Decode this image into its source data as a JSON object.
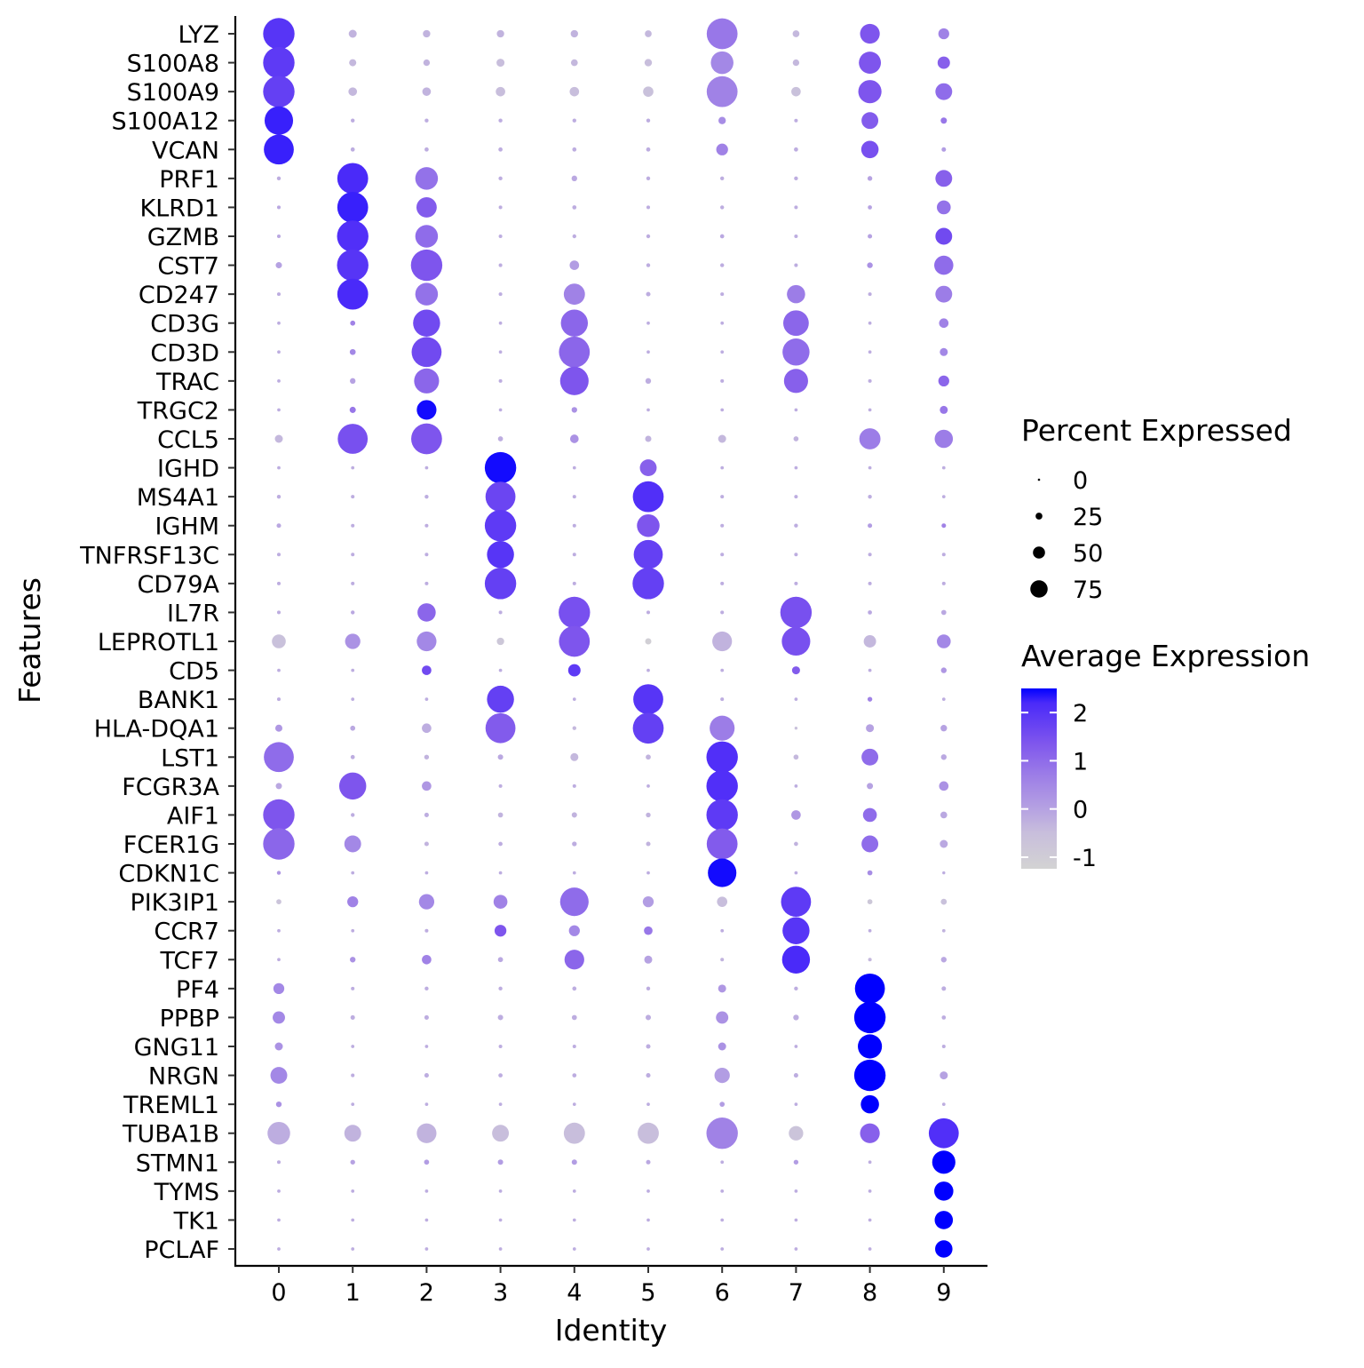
{
  "chart_data": {
    "type": "dotplot",
    "xlabel": "Identity",
    "ylabel": "Features",
    "clusters": [
      "0",
      "1",
      "2",
      "3",
      "4",
      "5",
      "6",
      "7",
      "8",
      "9"
    ],
    "genes": [
      "LYZ",
      "S100A8",
      "S100A9",
      "S100A12",
      "VCAN",
      "PRF1",
      "KLRD1",
      "GZMB",
      "CST7",
      "CD247",
      "CD3G",
      "CD3D",
      "TRAC",
      "TRGC2",
      "CCL5",
      "IGHD",
      "MS4A1",
      "IGHM",
      "TNFRSF13C",
      "CD79A",
      "IL7R",
      "LEPROTL1",
      "CD5",
      "BANK1",
      "HLA-DQA1",
      "LST1",
      "FCGR3A",
      "AIF1",
      "FCER1G",
      "CDKN1C",
      "PIK3IP1",
      "CCR7",
      "TCF7",
      "PF4",
      "PPBP",
      "GNG11",
      "NRGN",
      "TREML1",
      "TUBA1B",
      "STMN1",
      "TYMS",
      "TK1",
      "PCLAF"
    ],
    "percent_expressed": [
      [
        100,
        20,
        18,
        18,
        18,
        16,
        98,
        16,
        60,
        30
      ],
      [
        100,
        17,
        15,
        20,
        16,
        18,
        70,
        15,
        68,
        35
      ],
      [
        100,
        22,
        22,
        25,
        25,
        28,
        98,
        25,
        72,
        50
      ],
      [
        90,
        6,
        6,
        6,
        6,
        6,
        18,
        5,
        50,
        14
      ],
      [
        95,
        7,
        7,
        7,
        7,
        7,
        33,
        7,
        52,
        8
      ],
      [
        6,
        98,
        70,
        6,
        12,
        6,
        6,
        6,
        9,
        50
      ],
      [
        5,
        98,
        62,
        5,
        7,
        5,
        6,
        5,
        7,
        40
      ],
      [
        5,
        100,
        70,
        5,
        6,
        6,
        7,
        5,
        8,
        50
      ],
      [
        14,
        100,
        100,
        5,
        25,
        6,
        6,
        5,
        12,
        58
      ],
      [
        5,
        98,
        70,
        5,
        65,
        8,
        5,
        55,
        5,
        50
      ],
      [
        4,
        10,
        85,
        4,
        85,
        4,
        4,
        80,
        4,
        25
      ],
      [
        4,
        13,
        95,
        4,
        98,
        4,
        4,
        85,
        4,
        20
      ],
      [
        4,
        12,
        78,
        5,
        90,
        12,
        5,
        75,
        5,
        30
      ],
      [
        4,
        14,
        60,
        4,
        12,
        4,
        4,
        4,
        4,
        20
      ],
      [
        20,
        95,
        98,
        10,
        22,
        14,
        20,
        10,
        65,
        55
      ],
      [
        4,
        4,
        4,
        100,
        4,
        50,
        4,
        4,
        4,
        4
      ],
      [
        6,
        5,
        6,
        95,
        5,
        98,
        5,
        5,
        6,
        4
      ],
      [
        8,
        5,
        5,
        100,
        5,
        70,
        5,
        6,
        8,
        8
      ],
      [
        5,
        5,
        5,
        85,
        5,
        92,
        5,
        5,
        5,
        5
      ],
      [
        5,
        5,
        5,
        100,
        5,
        100,
        5,
        5,
        5,
        5
      ],
      [
        5,
        6,
        55,
        5,
        100,
        5,
        5,
        100,
        7,
        10
      ],
      [
        40,
        45,
        60,
        18,
        98,
        14,
        60,
        90,
        35,
        40
      ],
      [
        4,
        4,
        25,
        4,
        35,
        4,
        4,
        20,
        4,
        12
      ],
      [
        5,
        4,
        4,
        85,
        4,
        95,
        5,
        4,
        9,
        4
      ],
      [
        17,
        10,
        25,
        95,
        6,
        98,
        78,
        3,
        20,
        15
      ],
      [
        95,
        7,
        9,
        11,
        20,
        10,
        100,
        10,
        50,
        12
      ],
      [
        14,
        85,
        25,
        5,
        5,
        4,
        100,
        4,
        14,
        25
      ],
      [
        100,
        6,
        8,
        10,
        11,
        9,
        100,
        25,
        40,
        16
      ],
      [
        100,
        50,
        8,
        7,
        9,
        8,
        98,
        7,
        50,
        20
      ],
      [
        6,
        4,
        4,
        4,
        4,
        4,
        90,
        4,
        10,
        3
      ],
      [
        10,
        30,
        45,
        40,
        90,
        30,
        28,
        95,
        10,
        13
      ],
      [
        4,
        4,
        5,
        33,
        30,
        22,
        4,
        85,
        4,
        4
      ],
      [
        4,
        12,
        25,
        10,
        60,
        20,
        5,
        88,
        5,
        12
      ],
      [
        30,
        5,
        6,
        6,
        7,
        6,
        20,
        6,
        95,
        8
      ],
      [
        35,
        8,
        8,
        11,
        10,
        11,
        35,
        12,
        100,
        7
      ],
      [
        20,
        4,
        4,
        5,
        5,
        8,
        20,
        4,
        75,
        5
      ],
      [
        50,
        5,
        8,
        7,
        7,
        8,
        45,
        8,
        100,
        20
      ],
      [
        12,
        4,
        4,
        4,
        4,
        4,
        10,
        4,
        55,
        4
      ],
      [
        70,
        50,
        60,
        50,
        65,
        65,
        100,
        42,
        60,
        95
      ],
      [
        5,
        9,
        10,
        11,
        11,
        8,
        4,
        9,
        4,
        72
      ],
      [
        4,
        4,
        4,
        4,
        4,
        4,
        4,
        4,
        4,
        58
      ],
      [
        4,
        4,
        4,
        4,
        4,
        4,
        4,
        4,
        4,
        55
      ],
      [
        4,
        4,
        4,
        4,
        4,
        4,
        4,
        4,
        4,
        52
      ]
    ],
    "average_expression": [
      [
        2.0,
        -0.3,
        -0.3,
        -0.3,
        -0.3,
        -0.4,
        0.8,
        -0.4,
        1.4,
        0.6
      ],
      [
        1.9,
        -0.4,
        -0.3,
        -0.5,
        -0.4,
        -0.5,
        0.5,
        -0.4,
        1.4,
        1.2
      ],
      [
        1.8,
        -0.4,
        -0.3,
        -0.5,
        -0.5,
        -0.6,
        0.6,
        -0.6,
        1.4,
        1.0
      ],
      [
        2.3,
        -0.2,
        -0.2,
        -0.2,
        -0.2,
        -0.2,
        0.4,
        -0.2,
        1.3,
        0.8
      ],
      [
        2.3,
        -0.2,
        -0.2,
        -0.2,
        -0.2,
        -0.2,
        0.6,
        -0.2,
        1.5,
        0.1
      ],
      [
        -0.2,
        2.2,
        0.9,
        -0.2,
        -0.1,
        -0.2,
        -0.2,
        -0.2,
        0.0,
        1.2
      ],
      [
        -0.1,
        2.3,
        1.3,
        -0.2,
        -0.2,
        -0.2,
        -0.2,
        -0.2,
        0.0,
        0.9
      ],
      [
        -0.1,
        2.1,
        1.0,
        -0.2,
        -0.2,
        -0.2,
        -0.1,
        -0.2,
        0.0,
        1.6
      ],
      [
        0.0,
        2.0,
        1.4,
        -0.2,
        0.1,
        -0.2,
        -0.2,
        -0.2,
        0.3,
        1.0
      ],
      [
        -0.2,
        2.2,
        0.9,
        -0.2,
        0.6,
        -0.2,
        -0.2,
        0.7,
        -0.2,
        0.7
      ],
      [
        -0.2,
        0.6,
        1.6,
        -0.2,
        1.1,
        -0.2,
        -0.2,
        1.1,
        -0.2,
        0.6
      ],
      [
        -0.2,
        0.5,
        1.6,
        -0.2,
        1.1,
        -0.2,
        -0.2,
        1.0,
        -0.2,
        0.5
      ],
      [
        -0.2,
        0.0,
        1.1,
        -0.2,
        1.4,
        -0.2,
        -0.2,
        1.2,
        -0.2,
        1.1
      ],
      [
        -0.2,
        0.8,
        2.5,
        -0.2,
        0.3,
        -0.2,
        -0.2,
        -0.2,
        -0.2,
        0.8
      ],
      [
        -0.4,
        1.5,
        1.4,
        -0.2,
        0.3,
        -0.3,
        -0.4,
        -0.3,
        0.7,
        0.7
      ],
      [
        -0.2,
        -0.2,
        -0.2,
        2.5,
        -0.2,
        1.2,
        -0.2,
        -0.2,
        -0.2,
        -0.2
      ],
      [
        -0.2,
        -0.2,
        -0.2,
        1.7,
        -0.2,
        2.1,
        -0.2,
        -0.2,
        -0.2,
        -0.2
      ],
      [
        -0.1,
        -0.2,
        -0.2,
        1.9,
        -0.2,
        1.4,
        -0.2,
        -0.2,
        0.1,
        0.6
      ],
      [
        -0.2,
        -0.2,
        -0.2,
        2.0,
        -0.2,
        1.8,
        -0.2,
        -0.2,
        -0.2,
        -0.2
      ],
      [
        -0.2,
        -0.2,
        -0.2,
        1.8,
        -0.2,
        1.8,
        -0.2,
        -0.2,
        -0.2,
        -0.2
      ],
      [
        -0.2,
        -0.1,
        1.1,
        -0.2,
        1.5,
        -0.2,
        -0.2,
        1.5,
        -0.1,
        -0.1
      ],
      [
        -0.6,
        0.3,
        0.5,
        -0.8,
        1.4,
        -1.1,
        -0.3,
        1.5,
        -0.4,
        0.5
      ],
      [
        -0.2,
        -0.2,
        1.6,
        -0.2,
        1.9,
        -0.2,
        -0.2,
        1.3,
        -0.2,
        0.2
      ],
      [
        -0.2,
        -0.2,
        -0.2,
        1.8,
        -0.2,
        2.0,
        -0.2,
        -0.2,
        0.6,
        -0.2
      ],
      [
        0.2,
        -0.1,
        -0.2,
        1.3,
        -0.4,
        1.8,
        0.7,
        -0.6,
        0.0,
        0.0
      ],
      [
        1.0,
        -0.2,
        -0.3,
        -0.1,
        -0.4,
        -0.3,
        2.1,
        -0.4,
        1.0,
        -0.1
      ],
      [
        -0.1,
        1.4,
        0.2,
        -0.2,
        -0.2,
        -0.2,
        2.1,
        -0.2,
        0.0,
        0.3
      ],
      [
        1.4,
        -0.2,
        -0.2,
        -0.3,
        -0.3,
        -0.3,
        1.9,
        0.2,
        1.0,
        -0.1
      ],
      [
        1.1,
        0.5,
        -0.3,
        -0.2,
        -0.2,
        -0.3,
        1.3,
        -0.3,
        1.0,
        -0.1
      ],
      [
        0.2,
        -0.2,
        -0.2,
        -0.2,
        -0.2,
        -0.2,
        2.5,
        -0.2,
        0.4,
        -0.2
      ],
      [
        -0.7,
        0.6,
        0.5,
        0.6,
        1.0,
        0.1,
        -0.5,
        1.9,
        -0.8,
        -0.6
      ],
      [
        -0.2,
        -0.2,
        -0.2,
        1.4,
        0.5,
        0.8,
        -0.2,
        2.0,
        -0.2,
        -0.3
      ],
      [
        -0.2,
        0.3,
        0.6,
        -0.1,
        1.1,
        0.0,
        -0.3,
        2.2,
        -0.4,
        -0.1
      ],
      [
        0.5,
        -0.2,
        -0.2,
        -0.2,
        -0.2,
        -0.2,
        0.2,
        -0.2,
        2.6,
        -0.2
      ],
      [
        0.5,
        -0.2,
        -0.2,
        -0.2,
        -0.2,
        -0.2,
        0.3,
        -0.2,
        2.6,
        -0.2
      ],
      [
        0.3,
        -0.2,
        -0.2,
        -0.2,
        -0.2,
        -0.2,
        0.3,
        -0.2,
        2.6,
        -0.2
      ],
      [
        0.5,
        -0.2,
        -0.2,
        -0.2,
        -0.2,
        -0.2,
        0.1,
        -0.2,
        2.6,
        0.0
      ],
      [
        0.3,
        -0.2,
        -0.2,
        -0.2,
        -0.2,
        -0.2,
        0.1,
        -0.2,
        2.6,
        -0.2
      ],
      [
        -0.2,
        -0.3,
        -0.3,
        -0.5,
        -0.5,
        -0.5,
        0.6,
        -0.7,
        1.2,
        2.1
      ],
      [
        -0.2,
        0.0,
        0.1,
        0.1,
        0.1,
        -0.1,
        -0.2,
        0.1,
        -0.2,
        2.6
      ],
      [
        -0.2,
        -0.2,
        -0.2,
        -0.2,
        -0.2,
        -0.2,
        -0.2,
        -0.2,
        -0.2,
        2.6
      ],
      [
        -0.2,
        -0.2,
        -0.2,
        -0.2,
        -0.2,
        -0.2,
        -0.2,
        -0.2,
        -0.2,
        2.6
      ],
      [
        -0.2,
        -0.2,
        -0.2,
        -0.2,
        -0.2,
        -0.2,
        -0.2,
        -0.2,
        -0.2,
        2.6
      ]
    ],
    "size_legend": {
      "title": "Percent Expressed",
      "values": [
        0,
        25,
        50,
        75
      ],
      "labels": [
        "0",
        "25",
        "50",
        "75"
      ]
    },
    "color_legend": {
      "title": "Average Expression",
      "range": [
        -1.24,
        2.5
      ],
      "ticks": [
        2,
        1,
        0,
        -1
      ],
      "labels": [
        "2",
        "1",
        "0",
        "-1"
      ],
      "low_color": "#D3D3D3",
      "high_color": "#0000FF"
    },
    "legend_position": "right"
  }
}
